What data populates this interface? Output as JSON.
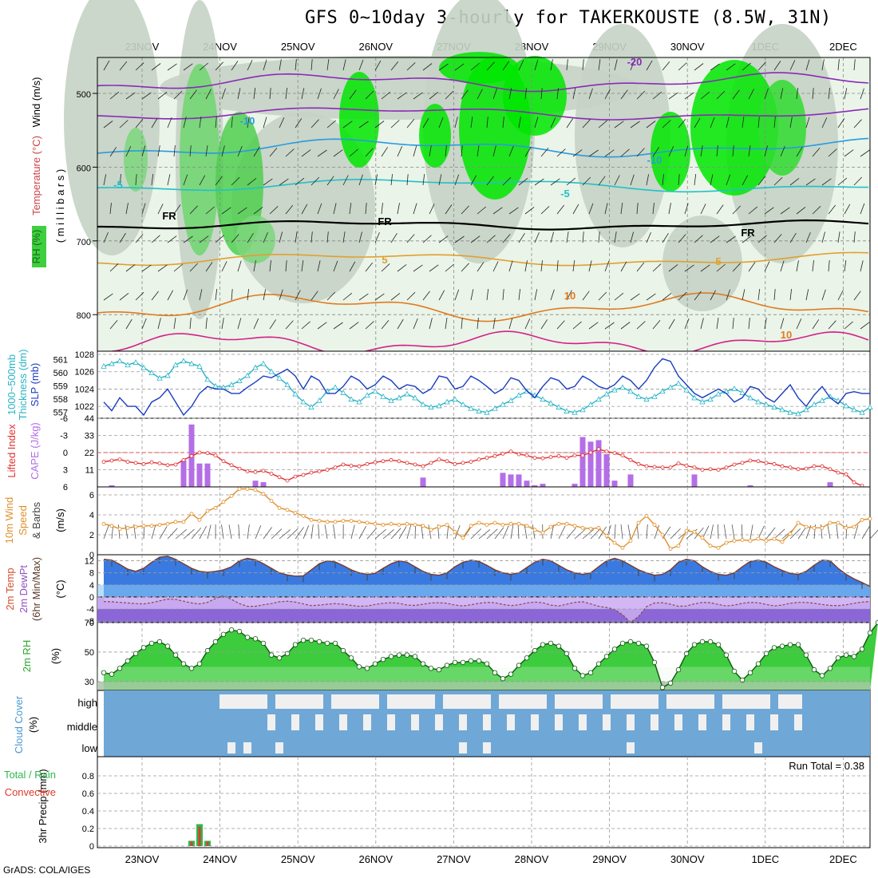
{
  "title": "GFS 0~10day 3-hourly for TAKERKOUSTE (8.5W, 31N)",
  "credit": "GrADS: COLA/IGES",
  "run_total_label": "Run Total = 0.38",
  "colors": {
    "rh_green": "#00e600",
    "wind_barb": "#000000",
    "slp": "#1a3cc0",
    "thickness": "#2ab5c5",
    "lifted": "#e03030",
    "cape": "#b46ee6",
    "wind10": "#e0902a",
    "cloud_bg": "#6fa8d6",
    "cloud_white": "#f0f0f0",
    "temp_fill": "#3a7ae0",
    "dew_fill": "#b48ae8",
    "rh2m": "#3dcc3d",
    "precip_total": "#2db84d",
    "precip_conv": "#e03a2a"
  },
  "panels": {
    "upper": {
      "ylabels": [
        {
          "text": "Wind (m/s)",
          "color": "#000000"
        },
        {
          "text": "Temperature (°C)",
          "color": "#cc4444"
        },
        {
          "text": "RH (%)",
          "color": "#2aa82a"
        },
        {
          "text": "( m i l l i b a r s )",
          "color": "#000000"
        }
      ],
      "yticks": [
        "500",
        "600",
        "700",
        "800"
      ],
      "labels": [
        "-20",
        "-10",
        "-5",
        "FR",
        "5",
        "10"
      ]
    },
    "thickness": {
      "label_left": "Thickness (dm)",
      "label_left2": "1000~500mb",
      "label_right": "SLP (mb)",
      "left_ticks": [
        "561",
        "560",
        "559",
        "558",
        "557"
      ],
      "right_ticks": [
        "1028",
        "1026",
        "1024",
        "1022"
      ]
    },
    "cape": {
      "label_left": "Lifted Index",
      "label_right": "CAPE (J/kg)",
      "left_ticks": [
        "-6",
        "-3",
        "0",
        "3",
        "6"
      ],
      "right_ticks": [
        "44",
        "33",
        "22",
        "11"
      ]
    },
    "wind10": {
      "label": "10m Wind",
      "label2": "Speed",
      "label3": "& Barbs",
      "unit": "(m/s)",
      "ticks": [
        "6",
        "4",
        "2",
        "0"
      ]
    },
    "temp": {
      "label": "2m Temp",
      "label2": "2m DewPt",
      "label3": "(6hr Min/Max)",
      "unit": "(°C)",
      "ticks": [
        "12",
        "8",
        "4",
        "0",
        "-4",
        "-8"
      ]
    },
    "rh2m": {
      "label": "2m RH",
      "unit": "(%)",
      "ticks": [
        "70",
        "50",
        "30"
      ]
    },
    "cloud": {
      "label": "Cloud Cover",
      "unit": "(%)",
      "levels": [
        "high",
        "middle",
        "low"
      ]
    },
    "precip": {
      "label": "3hr Precip (mm)",
      "label_total": "Total / Rain",
      "label_conv": "Convective",
      "ticks": [
        "0.8",
        "0.6",
        "0.4",
        "0.2",
        "0"
      ]
    }
  },
  "chart_data": {
    "type": "meteogram",
    "x_dates": [
      "23NOV",
      "24NOV",
      "25NOV",
      "26NOV",
      "27NOV",
      "28NOV",
      "29NOV",
      "30NOV",
      "1DEC",
      "2DEC"
    ],
    "slp_mb": [
      1022.5,
      1021.5,
      1023.0,
      1022.0,
      1022.0,
      1021.0,
      1022.5,
      1023.0,
      1024.0,
      1022.5,
      1021.0,
      1022.0,
      1023.5,
      1024.3,
      1024.0,
      1024.0,
      1023.5,
      1023.5,
      1024.2,
      1024.8,
      1025.5,
      1025.3,
      1025.8,
      1026.3,
      1025.5,
      1024.0,
      1025.5,
      1025.0,
      1023.5,
      1023.5,
      1024.3,
      1025.5,
      1025.0,
      1024.0,
      1024.5,
      1025.5,
      1025.0,
      1024.0,
      1024.5,
      1024.3,
      1023.5,
      1024.0,
      1025.5,
      1025.3,
      1024.0,
      1024.3,
      1025.5,
      1025.0,
      1024.3,
      1023.5,
      1024.0,
      1025.3,
      1025.0,
      1023.8,
      1023.0,
      1024.3,
      1025.3,
      1025.0,
      1024.0,
      1024.3,
      1025.5,
      1025.0,
      1024.3,
      1024.0,
      1024.5,
      1025.5,
      1025.0,
      1024.0,
      1025.0,
      1026.5,
      1027.5,
      1027.2,
      1025.5,
      1024.5,
      1023.5,
      1023.0,
      1023.5,
      1024.0,
      1023.5,
      1022.5,
      1023.0,
      1024.3,
      1024.0,
      1023.0,
      1022.5,
      1023.5,
      1024.5,
      1023.0,
      1022.0,
      1023.3,
      1024.3,
      1023.0,
      1022.3,
      1023.5,
      1023.7,
      1023.5,
      1023.5
    ],
    "thickness_dm": [
      560.5,
      560.7,
      560.9,
      560.6,
      560.8,
      560.4,
      560.0,
      559.6,
      559.8,
      560.6,
      560.9,
      560.7,
      560.5,
      559.5,
      559.0,
      558.9,
      559.1,
      559.4,
      559.8,
      560.4,
      560.7,
      560.1,
      559.6,
      559.1,
      558.4,
      557.8,
      557.4,
      557.9,
      558.6,
      558.9,
      558.5,
      558.0,
      557.8,
      558.3,
      558.6,
      558.2,
      557.9,
      558.1,
      558.4,
      558.1,
      557.6,
      557.4,
      557.5,
      557.8,
      558.0,
      557.6,
      557.3,
      557.1,
      557.0,
      557.3,
      557.6,
      557.9,
      558.3,
      558.6,
      558.3,
      558.0,
      557.7,
      557.4,
      557.1,
      557.0,
      557.2,
      557.6,
      558.0,
      558.4,
      558.7,
      558.9,
      558.6,
      558.2,
      558.0,
      558.2,
      558.6,
      558.9,
      559.2,
      558.7,
      558.1,
      557.8,
      558.0,
      558.4,
      558.6,
      558.8,
      558.5,
      558.1,
      557.8,
      557.6,
      557.4,
      557.2,
      557.0,
      556.9,
      557.2,
      557.6,
      557.9,
      558.2,
      557.9,
      557.5,
      557.2,
      557.0,
      557.4
    ],
    "lifted_index": [
      1.6,
      1.4,
      1.2,
      1.6,
      1.8,
      2.0,
      1.7,
      1.9,
      2.2,
      2.1,
      1.3,
      0.6,
      0.0,
      0.1,
      0.5,
      1.5,
      2.2,
      2.8,
      3.3,
      3.4,
      3.2,
      3.7,
      4.3,
      4.9,
      4.2,
      3.9,
      3.5,
      3.3,
      3.0,
      2.6,
      2.1,
      2.3,
      2.4,
      2.0,
      1.7,
      1.5,
      1.3,
      1.5,
      1.8,
      2.1,
      2.4,
      1.8,
      1.2,
      1.5,
      2.0,
      1.8,
      1.6,
      1.2,
      0.9,
      0.6,
      0.2,
      -0.2,
      0.3,
      0.5,
      0.9,
      1.0,
      0.8,
      0.6,
      0.9,
      0.5,
      0.5,
      0.0,
      -0.6,
      -0.2,
      0.1,
      0.5,
      1.3,
      2.0,
      2.4,
      2.5,
      2.6,
      2.6,
      1.9,
      2.3,
      2.6,
      3.0,
      2.9,
      3.0,
      2.6,
      2.1,
      1.8,
      1.4,
      1.5,
      1.8,
      2.0,
      2.4,
      2.6,
      2.9,
      2.8,
      2.4,
      2.4,
      2.9,
      3.5,
      3.8,
      5.2,
      5.8
    ],
    "cape_jkg": [
      0,
      1,
      0,
      0,
      0,
      0,
      0,
      0,
      0,
      0,
      17,
      40,
      15,
      15,
      0,
      0,
      0,
      0,
      0,
      4,
      3,
      0,
      0,
      0,
      0,
      0,
      0,
      0,
      0,
      0,
      0,
      0,
      0,
      0,
      0,
      0,
      0,
      0,
      0,
      0,
      6,
      0,
      0,
      0,
      0,
      0,
      0,
      0,
      0,
      0,
      9,
      8,
      8,
      4,
      1,
      2,
      0,
      0,
      0,
      2,
      32,
      29,
      30,
      21,
      4,
      0,
      8,
      0,
      0,
      0,
      0,
      0,
      0,
      0,
      8,
      0,
      0,
      0,
      0,
      0,
      0,
      1,
      0,
      0,
      0,
      0,
      0,
      0,
      0,
      0,
      0,
      3,
      0,
      0,
      0,
      0,
      0
    ],
    "wind10_ms": [
      3.1,
      2.9,
      2.6,
      2.7,
      2.8,
      2.9,
      2.9,
      3.0,
      3.1,
      3.3,
      3.3,
      4.1,
      3.5,
      4.4,
      4.7,
      5.3,
      5.9,
      6.6,
      6.6,
      6.5,
      6.1,
      5.4,
      4.7,
      4.5,
      4.2,
      3.9,
      3.5,
      3.4,
      3.3,
      3.3,
      3.4,
      3.4,
      3.3,
      3.2,
      3.1,
      3.0,
      3.1,
      3.0,
      3.1,
      3.0,
      2.9,
      2.5,
      2.8,
      3.0,
      2.3,
      1.7,
      2.9,
      3.2,
      3.0,
      3.2,
      3.0,
      3.1,
      3.1,
      2.9,
      2.5,
      2.2,
      2.8,
      3.1,
      3.1,
      2.9,
      2.7,
      2.6,
      2.7,
      1.9,
      1.2,
      0.7,
      1.4,
      3.2,
      3.9,
      3.0,
      2.0,
      0.6,
      0.9,
      2.4,
      2.3,
      1.7,
      0.9,
      0.7,
      1.2,
      1.4,
      1.5,
      1.4,
      1.6,
      1.4,
      1.6,
      1.3,
      2.1,
      3.2,
      2.8,
      2.7,
      2.7,
      3.2,
      3.2,
      2.7,
      2.8,
      3.5,
      3.6
    ],
    "temp2m_c": [
      12.5,
      12.2,
      10.8,
      9.2,
      8.5,
      9.5,
      11.5,
      13.2,
      13.5,
      12.5,
      11.0,
      9.5,
      8.5,
      8.2,
      8.5,
      9.0,
      10.0,
      12.0,
      12.8,
      12.3,
      11.0,
      9.5,
      8.0,
      7.3,
      6.9,
      7.0,
      9.0,
      11.0,
      12.0,
      11.6,
      10.4,
      9.0,
      8.0,
      7.5,
      7.8,
      9.5,
      11.0,
      12.0,
      11.5,
      10.0,
      8.5,
      7.5,
      7.2,
      8.0,
      10.0,
      11.5,
      12.2,
      11.8,
      10.5,
      9.0,
      8.0,
      7.5,
      8.0,
      9.8,
      11.5,
      12.5,
      12.0,
      10.5,
      9.0,
      8.0,
      7.5,
      8.0,
      10.0,
      12.0,
      12.8,
      12.0,
      10.5,
      9.0,
      8.0,
      7.2,
      7.5,
      9.0,
      11.5,
      12.5,
      12.0,
      10.0,
      8.5,
      7.5,
      7.2,
      8.0,
      10.0,
      11.8,
      12.2,
      11.5,
      10.0,
      8.8,
      7.8,
      7.5,
      8.5,
      10.5,
      12.2,
      12.0,
      9.5,
      7.5,
      6.0,
      4.8,
      3.5
    ],
    "dewpt2m_c": [
      -1.5,
      -1.6,
      -1.8,
      -2.0,
      -2.2,
      -2.3,
      -1.9,
      -1.3,
      -0.7,
      -0.8,
      -1.4,
      -2.0,
      -2.3,
      -1.8,
      -0.5,
      0.4,
      -0.8,
      -2.2,
      -3.1,
      -3.1,
      -2.6,
      -2.2,
      -1.6,
      -1.4,
      -1.7,
      -2.3,
      -2.9,
      -2.7,
      -2.4,
      -2.2,
      -2.4,
      -2.8,
      -3.1,
      -3.0,
      -2.5,
      -2.1,
      -1.9,
      -2.1,
      -2.7,
      -2.8,
      -2.4,
      -2.0,
      -1.9,
      -2.1,
      -2.7,
      -3.0,
      -2.6,
      -2.1,
      -1.8,
      -1.9,
      -2.5,
      -2.9,
      -2.6,
      -2.0,
      -1.7,
      -1.9,
      -2.7,
      -3.0,
      -2.4,
      -1.8,
      -1.6,
      -2.3,
      -3.1,
      -3.5,
      -4.1,
      -5.9,
      -8.4,
      -6.5,
      -3.2,
      -2.0,
      -1.9,
      -2.4,
      -3.1,
      -3.0,
      -2.3,
      -1.8,
      -1.9,
      -2.5,
      -3.0,
      -2.7,
      -2.1,
      -1.8,
      -1.9,
      -2.5,
      -3.0,
      -2.7,
      -2.1,
      -1.8,
      -1.8,
      -2.1,
      -2.5,
      -2.8,
      -2.9,
      -2.6,
      -2.1,
      -1.7,
      -1.5
    ],
    "rh2m_pct": [
      36,
      35,
      39,
      44,
      49,
      53,
      56,
      57,
      54,
      48,
      42,
      39,
      42,
      51,
      57,
      62,
      65,
      64,
      60,
      59,
      56,
      48,
      46,
      49,
      55,
      58,
      58,
      57,
      56,
      56,
      51,
      46,
      40,
      39,
      42,
      45,
      47,
      48,
      48,
      47,
      42,
      39,
      38,
      41,
      43,
      43,
      44,
      44,
      42,
      36,
      32,
      35,
      41,
      46,
      51,
      55,
      56,
      54,
      49,
      39,
      34,
      36,
      42,
      47,
      52,
      56,
      57,
      56,
      54,
      43,
      26,
      29,
      38,
      49,
      55,
      57,
      57,
      55,
      48,
      37,
      31,
      36,
      42,
      49,
      53,
      54,
      55,
      55,
      48,
      38,
      34,
      39,
      46,
      48,
      47,
      52,
      63,
      70
    ],
    "precip_total_mm": [
      0,
      0,
      0,
      0,
      0,
      0,
      0,
      0,
      0,
      0,
      0,
      0.06,
      0.25,
      0.06,
      0,
      0,
      0,
      0,
      0,
      0,
      0,
      0,
      0,
      0,
      0,
      0,
      0,
      0,
      0,
      0,
      0,
      0,
      0,
      0,
      0,
      0,
      0,
      0,
      0,
      0,
      0,
      0,
      0,
      0,
      0,
      0,
      0,
      0,
      0,
      0,
      0,
      0,
      0,
      0,
      0,
      0,
      0,
      0,
      0,
      0,
      0,
      0,
      0,
      0,
      0,
      0,
      0,
      0,
      0,
      0,
      0,
      0,
      0,
      0,
      0,
      0,
      0,
      0,
      0,
      0,
      0,
      0,
      0,
      0,
      0,
      0,
      0,
      0,
      0,
      0,
      0,
      0,
      0,
      0,
      0,
      0,
      0
    ],
    "precip_conv_mm": [
      0,
      0,
      0,
      0,
      0,
      0,
      0,
      0,
      0,
      0,
      0,
      0.05,
      0.22,
      0.05,
      0,
      0,
      0,
      0,
      0,
      0,
      0,
      0,
      0,
      0,
      0,
      0,
      0,
      0,
      0,
      0,
      0,
      0,
      0,
      0,
      0,
      0,
      0,
      0,
      0,
      0,
      0,
      0,
      0,
      0,
      0,
      0,
      0,
      0,
      0,
      0,
      0,
      0,
      0,
      0,
      0,
      0,
      0,
      0,
      0,
      0,
      0,
      0,
      0,
      0,
      0,
      0,
      0,
      0,
      0,
      0,
      0,
      0,
      0,
      0,
      0,
      0,
      0,
      0,
      0,
      0,
      0,
      0,
      0,
      0,
      0,
      0,
      0,
      0,
      0,
      0,
      0,
      0,
      0,
      0,
      0,
      0,
      0
    ],
    "precip_run_total_mm": 0.38,
    "axes": {
      "slp_mb": [
        1021,
        1028
      ],
      "thickness_dm": [
        556.8,
        561.4
      ],
      "lifted_index": [
        6,
        -6
      ],
      "cape_jkg": [
        0,
        44
      ],
      "wind10_ms": [
        0,
        6.8
      ],
      "temp2m_c": [
        -8.5,
        14
      ],
      "rh2m_pct": [
        24,
        70
      ],
      "precip_mm": [
        0,
        1.0
      ]
    }
  }
}
